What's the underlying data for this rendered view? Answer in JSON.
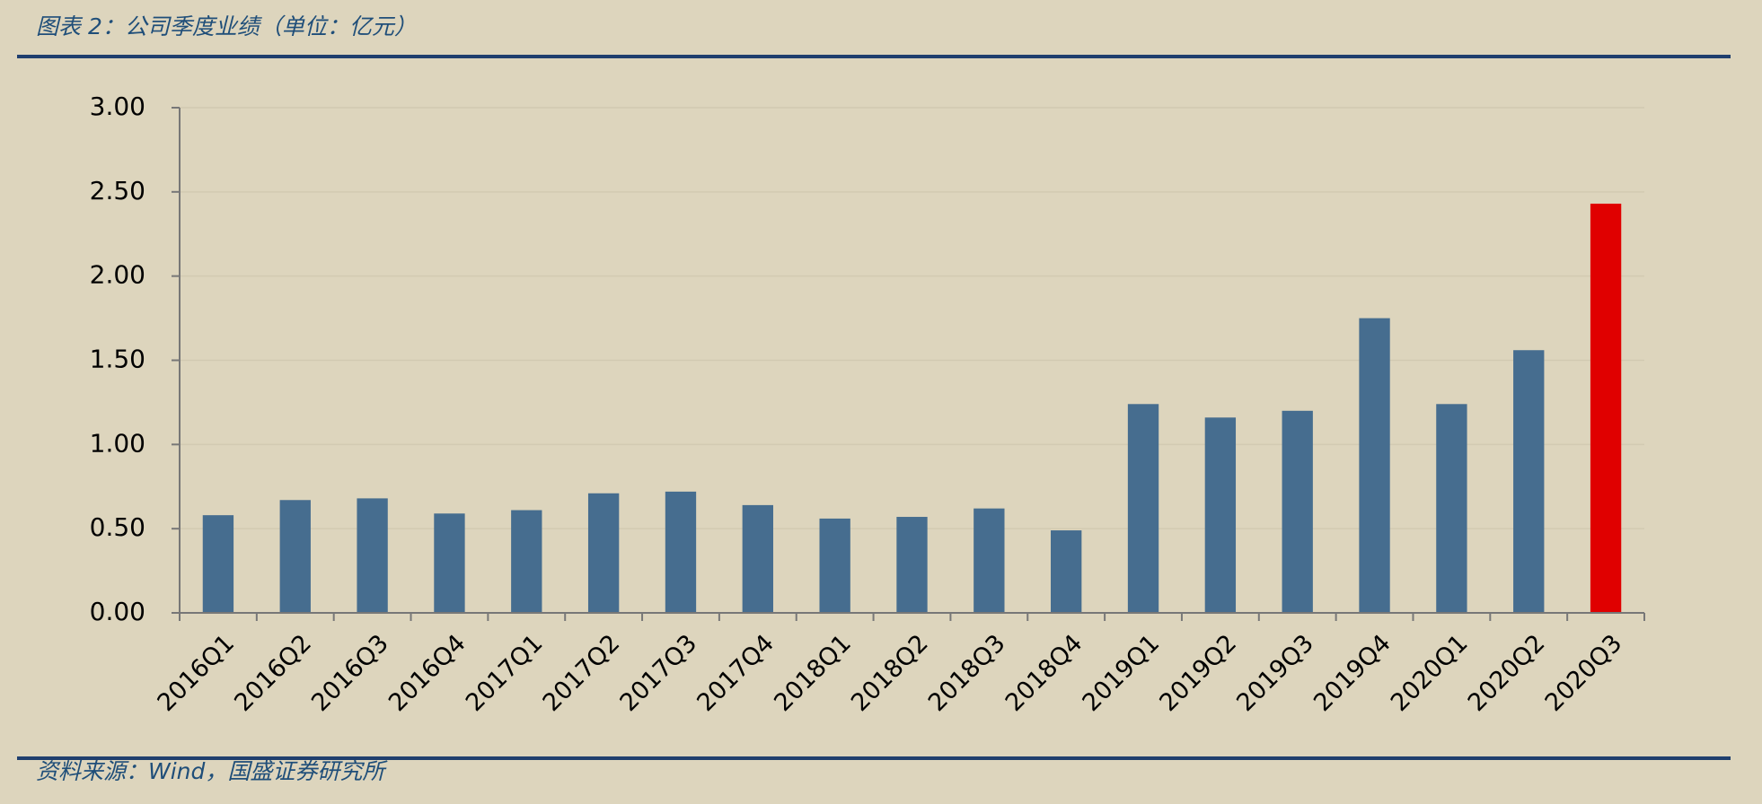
{
  "chart_data": {
    "type": "bar",
    "title": "图表 2：公司季度业绩（单位：亿元）",
    "source": "资料来源：Wind，国盛证券研究所",
    "categories": [
      "2016Q1",
      "2016Q2",
      "2016Q3",
      "2016Q4",
      "2017Q1",
      "2017Q2",
      "2017Q3",
      "2017Q4",
      "2018Q1",
      "2018Q2",
      "2018Q3",
      "2018Q4",
      "2019Q1",
      "2019Q2",
      "2019Q3",
      "2019Q4",
      "2020Q1",
      "2020Q2",
      "2020Q3"
    ],
    "values": [
      0.58,
      0.67,
      0.68,
      0.59,
      0.61,
      0.71,
      0.72,
      0.64,
      0.56,
      0.57,
      0.62,
      0.49,
      1.24,
      1.16,
      1.2,
      1.75,
      1.24,
      1.56,
      2.43
    ],
    "colors": [
      "#466d8f",
      "#466d8f",
      "#466d8f",
      "#466d8f",
      "#466d8f",
      "#466d8f",
      "#466d8f",
      "#466d8f",
      "#466d8f",
      "#466d8f",
      "#466d8f",
      "#466d8f",
      "#466d8f",
      "#466d8f",
      "#466d8f",
      "#466d8f",
      "#466d8f",
      "#466d8f",
      "#e00000"
    ],
    "ylim": [
      0,
      3
    ],
    "yticks": [
      {
        "value": 0,
        "label": "0.00"
      },
      {
        "value": 0.5,
        "label": "0.50"
      },
      {
        "value": 1,
        "label": "1.00"
      },
      {
        "value": 1.5,
        "label": "1.50"
      },
      {
        "value": 2,
        "label": "2.00"
      },
      {
        "value": 2.5,
        "label": "2.50"
      },
      {
        "value": 3,
        "label": "3.00"
      }
    ],
    "grid": true
  }
}
